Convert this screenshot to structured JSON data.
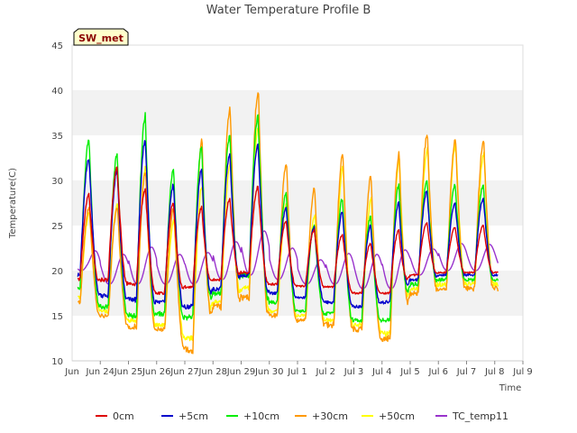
{
  "chart_data": {
    "type": "line",
    "title": "Water Temperature Profile B",
    "xlabel": "Time",
    "ylabel": "Temperature(C)",
    "ylim": [
      10,
      45
    ],
    "yticks": [
      10,
      15,
      20,
      25,
      30,
      35,
      40,
      45
    ],
    "xlim": [
      "2024-06-23",
      "2024-07-09"
    ],
    "xticks": [
      "Jun 24",
      "Jun 25",
      "Jun 26",
      "Jun 27",
      "Jun 28",
      "Jun 29",
      "Jun 30",
      "Jul 1",
      "Jul 2",
      "Jul 3",
      "Jul 4",
      "Jul 5",
      "Jul 6",
      "Jul 7",
      "Jul 8",
      "Jul 9"
    ],
    "xtick_label_prefix": "Jun ",
    "grid": "alternating horizontal bands",
    "legend_position": "bottom",
    "station_badge": "SW_met",
    "day_start": "2024-06-23",
    "series": [
      {
        "name": "0cm",
        "color": "#dd0000",
        "minima": [
          19.0,
          19.0,
          18.5,
          17.5,
          18.2,
          19.0,
          19.8,
          18.5,
          18.3,
          18.2,
          17.5,
          17.5,
          19.5,
          19.8,
          19.8
        ],
        "maxima": [
          28.5,
          31.5,
          29.0,
          27.5,
          27.0,
          28.0,
          29.3,
          25.5,
          24.5,
          24.0,
          23.0,
          24.5,
          25.3,
          24.8,
          25.0
        ]
      },
      {
        "name": "+5cm",
        "color": "#0000cc",
        "minima": [
          19.5,
          17.2,
          16.8,
          16.5,
          16.0,
          18.0,
          19.5,
          17.5,
          17.0,
          16.5,
          16.0,
          16.5,
          19.0,
          19.5,
          19.5
        ],
        "maxima": [
          32.5,
          31.0,
          34.5,
          29.5,
          31.3,
          33.0,
          34.0,
          27.0,
          24.8,
          26.5,
          25.0,
          27.5,
          28.8,
          27.5,
          28.0
        ]
      },
      {
        "name": "+10cm",
        "color": "#00ee00",
        "minima": [
          18.0,
          16.0,
          15.0,
          15.2,
          14.8,
          17.5,
          19.5,
          16.5,
          15.5,
          15.2,
          14.5,
          14.5,
          18.5,
          19.0,
          19.0
        ],
        "maxima": [
          34.5,
          32.8,
          37.3,
          31.3,
          33.8,
          35.0,
          37.0,
          28.5,
          25.0,
          28.0,
          26.0,
          29.5,
          30.0,
          29.5,
          29.5
        ]
      },
      {
        "name": "+30cm",
        "color": "#ff9900",
        "minima": [
          16.5,
          15.0,
          13.8,
          13.5,
          11.2,
          16.0,
          17.0,
          15.0,
          14.5,
          14.0,
          13.5,
          12.5,
          17.5,
          18.0,
          18.0
        ],
        "maxima": [
          27.0,
          27.0,
          31.0,
          27.0,
          34.5,
          38.2,
          40.0,
          32.0,
          29.2,
          33.0,
          30.5,
          33.0,
          35.2,
          34.5,
          34.5
        ]
      },
      {
        "name": "+50cm",
        "color": "#ffff00",
        "minima": [
          17.0,
          15.5,
          14.5,
          14.0,
          12.5,
          16.5,
          18.0,
          15.5,
          15.0,
          14.5,
          14.0,
          13.0,
          18.0,
          18.5,
          18.5
        ],
        "maxima": [
          26.5,
          27.5,
          31.5,
          25.5,
          29.5,
          32.0,
          36.0,
          27.5,
          26.0,
          31.5,
          28.0,
          32.5,
          33.5,
          34.0,
          33.0
        ]
      },
      {
        "name": "TC_temp11",
        "color": "#9933cc",
        "minima": [
          20.0,
          18.5,
          18.5,
          18.5,
          18.5,
          19.0,
          19.5,
          19.0,
          18.5,
          18.5,
          18.0,
          18.0,
          19.5,
          20.0,
          20.0
        ],
        "maxima": [
          22.2,
          21.8,
          22.6,
          21.8,
          22.0,
          23.2,
          24.4,
          22.5,
          21.2,
          21.9,
          21.8,
          22.3,
          22.4,
          23.0,
          22.9
        ]
      }
    ]
  }
}
